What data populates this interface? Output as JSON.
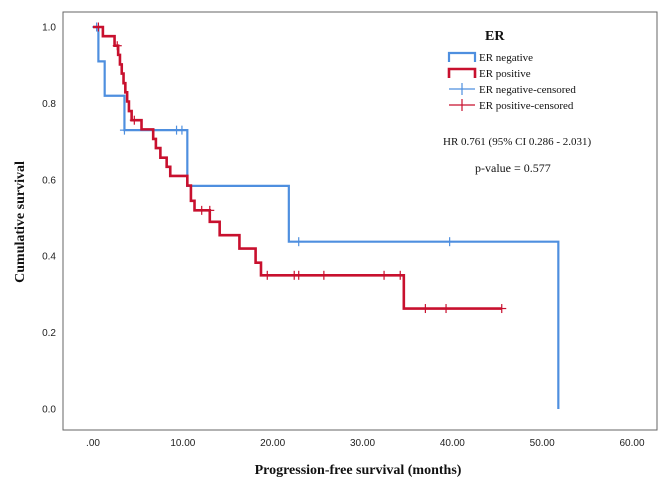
{
  "chart_data": {
    "type": "line",
    "step": true,
    "xlabel": "Progression-free survival (months)",
    "ylabel": "Cumulative survival",
    "xlim": [
      0,
      60
    ],
    "ylim": [
      0,
      1.0
    ],
    "x_ticks": [
      0,
      10,
      20,
      30,
      40,
      50,
      60
    ],
    "x_tick_labels": [
      ".00",
      "10.00",
      "20.00",
      "30.00",
      "40.00",
      "50.00",
      "60.00"
    ],
    "y_ticks": [
      0,
      0.2,
      0.4,
      0.6,
      0.8,
      1.0
    ],
    "y_tick_labels": [
      "0.0",
      "0.2",
      "0.4",
      "0.6",
      "0.8",
      "1.0"
    ],
    "grid": false,
    "legend": {
      "title": "ER",
      "position": "top-right",
      "entries": [
        {
          "label": "ER negative",
          "kind": "line",
          "series": 0
        },
        {
          "label": "ER positive",
          "kind": "line",
          "series": 1
        },
        {
          "label": "ER negative-censored",
          "kind": "censor",
          "series": 0
        },
        {
          "label": "ER positive-censored",
          "kind": "censor",
          "series": 1
        }
      ]
    },
    "annotations": {
      "hr": "HR 0.761 (95% CI 0.286 - 2.031)",
      "p_value": "p-value = 0.577"
    },
    "series": [
      {
        "name": "ER negative",
        "color": "#4e8fdf",
        "steps": [
          [
            0,
            1.0
          ],
          [
            0.6,
            0.91
          ],
          [
            1.3,
            0.82
          ],
          [
            3.5,
            0.73
          ],
          [
            10.5,
            0.584
          ],
          [
            21.8,
            0.438
          ],
          [
            51.8,
            0.0
          ]
        ],
        "end_x": 51.8,
        "censored": [
          [
            0.4,
            1.0
          ],
          [
            3.5,
            0.73
          ],
          [
            9.3,
            0.73
          ],
          [
            9.9,
            0.73
          ],
          [
            22.9,
            0.438
          ],
          [
            39.7,
            0.438
          ]
        ]
      },
      {
        "name": "ER positive",
        "color": "#c8102e",
        "steps": [
          [
            0,
            1.0
          ],
          [
            1.1,
            0.976
          ],
          [
            2.4,
            0.951
          ],
          [
            2.8,
            0.927
          ],
          [
            3.0,
            0.902
          ],
          [
            3.2,
            0.878
          ],
          [
            3.4,
            0.853
          ],
          [
            3.6,
            0.829
          ],
          [
            3.8,
            0.805
          ],
          [
            4.0,
            0.78
          ],
          [
            4.3,
            0.756
          ],
          [
            5.4,
            0.732
          ],
          [
            6.7,
            0.707
          ],
          [
            7.0,
            0.683
          ],
          [
            7.5,
            0.658
          ],
          [
            8.2,
            0.634
          ],
          [
            8.6,
            0.61
          ],
          [
            10.5,
            0.585
          ],
          [
            10.9,
            0.545
          ],
          [
            11.3,
            0.52
          ],
          [
            13.0,
            0.49
          ],
          [
            14.1,
            0.455
          ],
          [
            16.3,
            0.42
          ],
          [
            18.1,
            0.383
          ],
          [
            18.7,
            0.35
          ],
          [
            34.6,
            0.263
          ]
        ],
        "end_x": 45.5,
        "censored": [
          [
            0.6,
            1.0
          ],
          [
            2.7,
            0.951
          ],
          [
            4.6,
            0.756
          ],
          [
            12.1,
            0.52
          ],
          [
            13.0,
            0.52
          ],
          [
            19.4,
            0.35
          ],
          [
            22.4,
            0.35
          ],
          [
            22.9,
            0.35
          ],
          [
            25.7,
            0.35
          ],
          [
            32.4,
            0.35
          ],
          [
            34.2,
            0.35
          ],
          [
            37.0,
            0.263
          ],
          [
            39.3,
            0.263
          ],
          [
            45.5,
            0.263
          ]
        ]
      }
    ]
  }
}
